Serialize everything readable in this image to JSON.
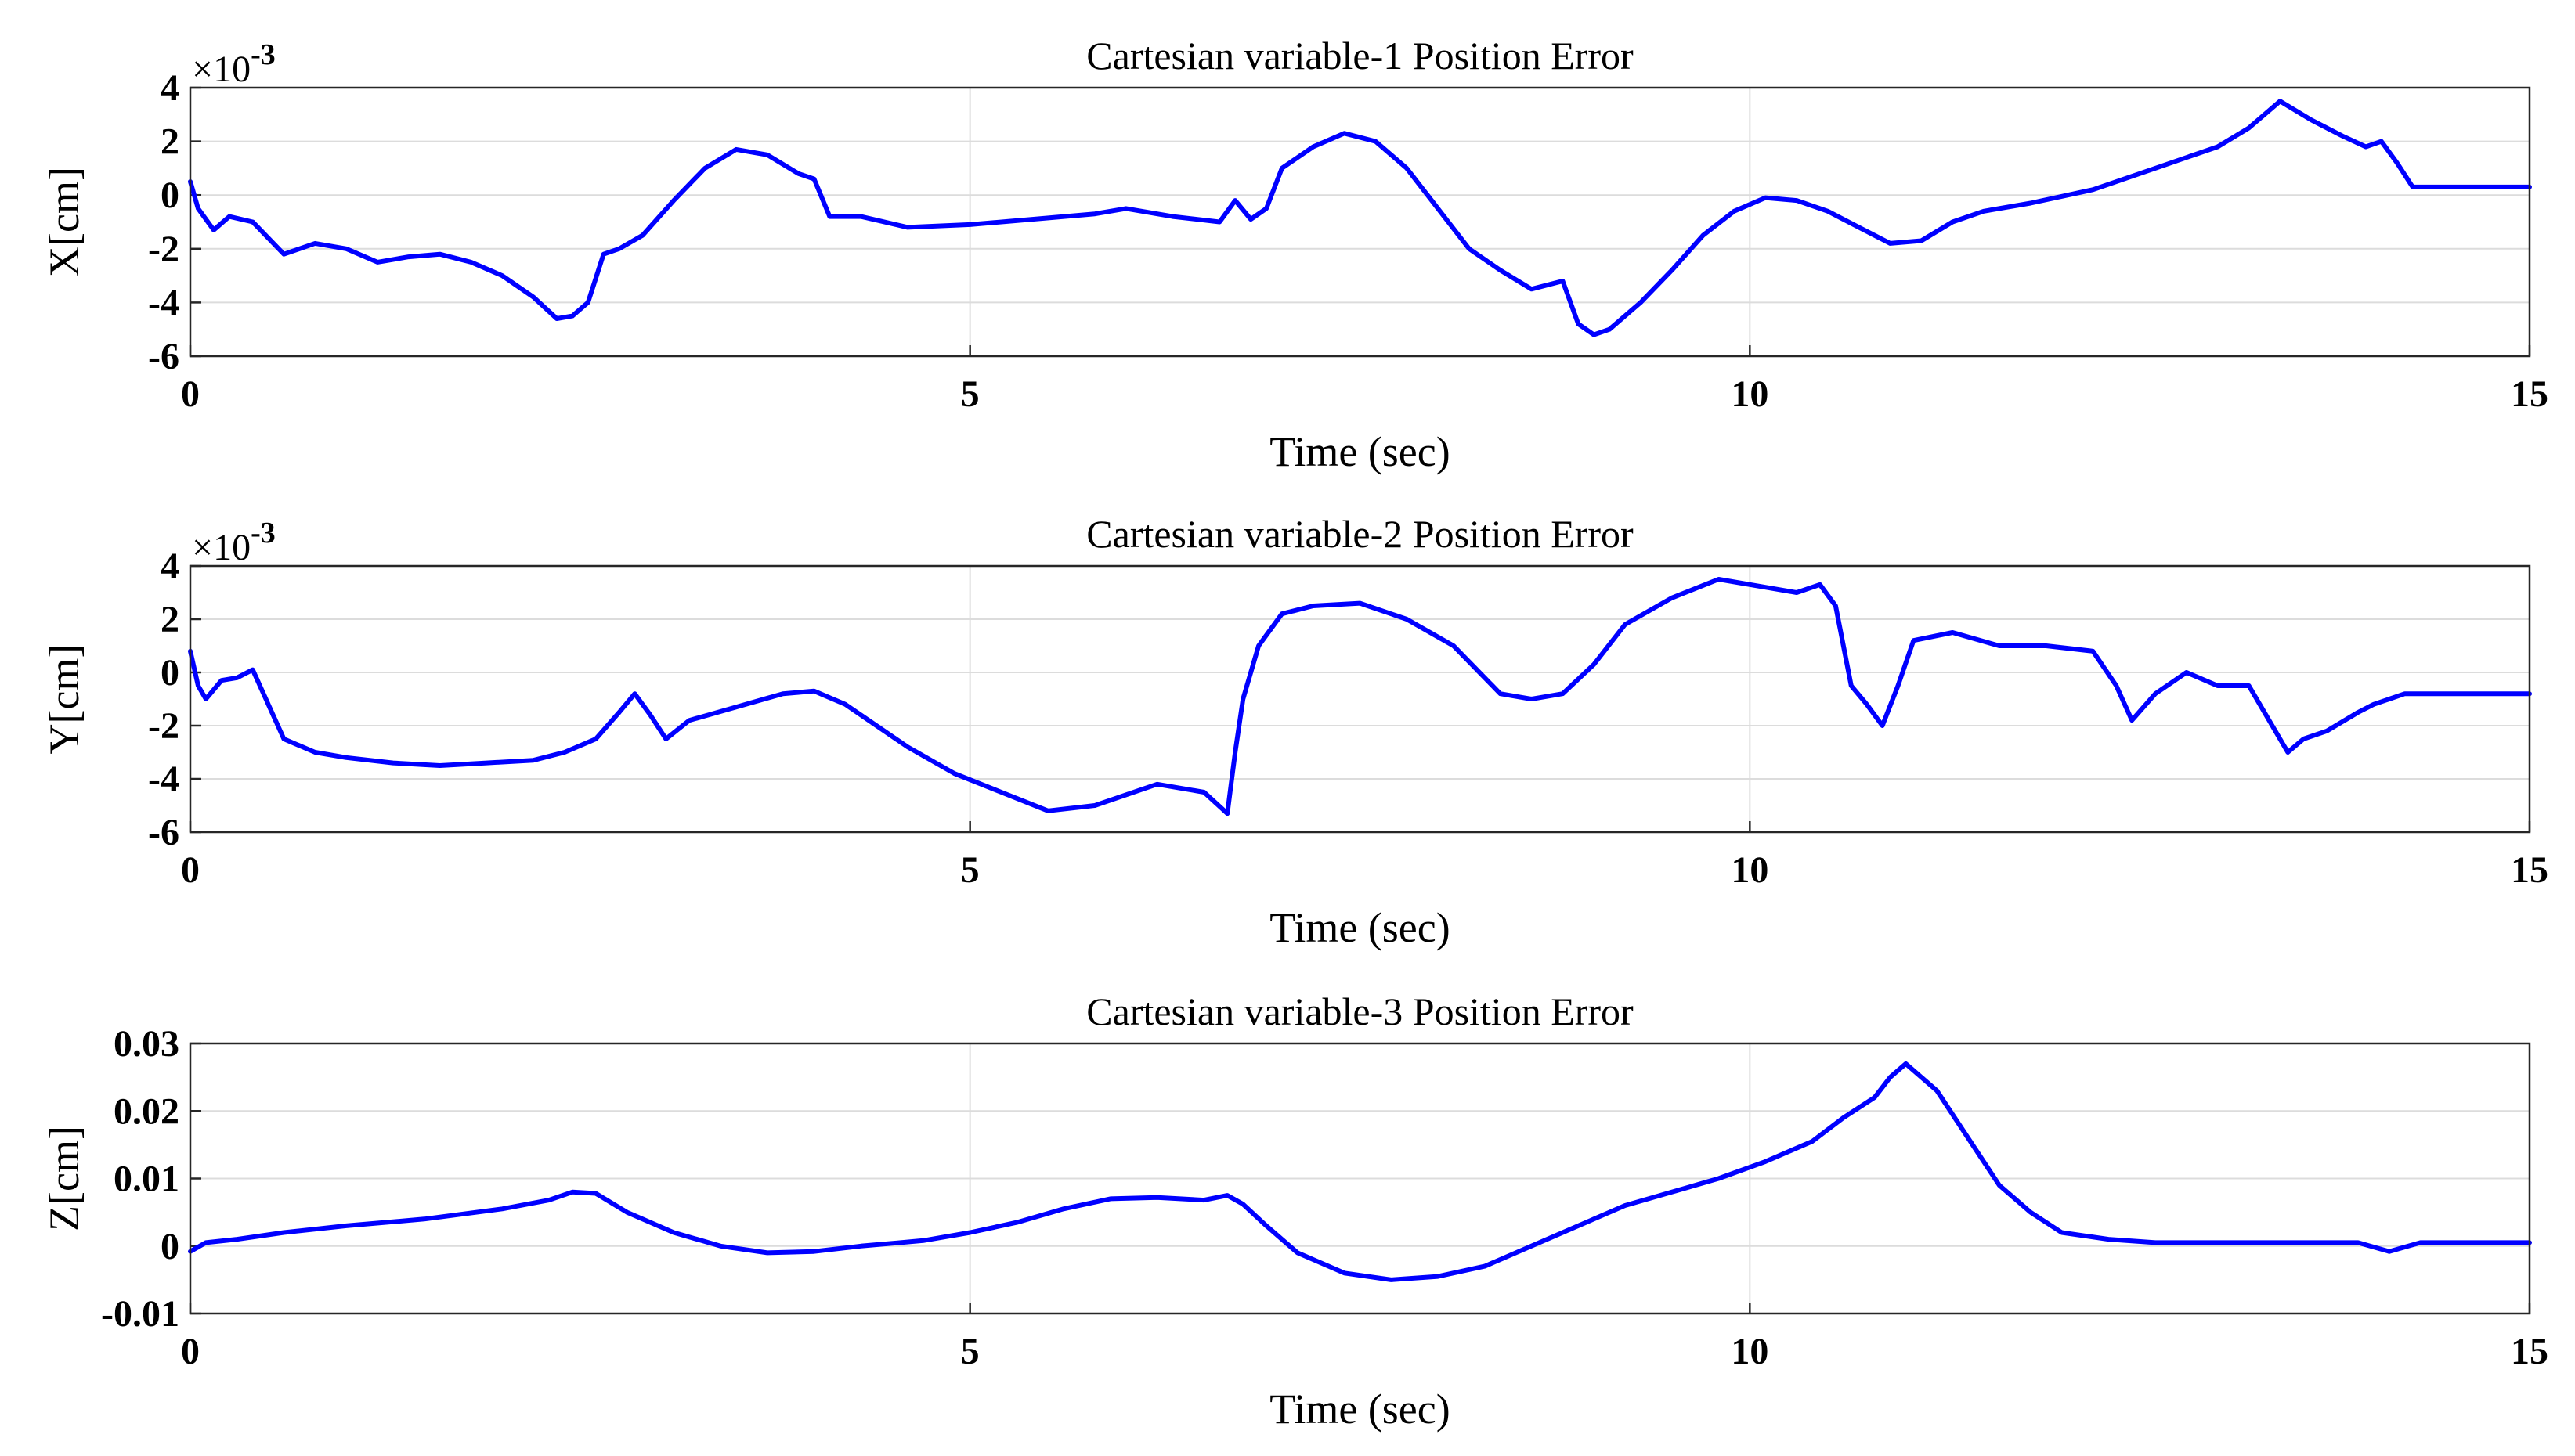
{
  "colors": {
    "line": "#0000ff",
    "grid": "#dcdcdc",
    "axis": "#262626"
  },
  "chart_data": [
    {
      "type": "line",
      "title": "Cartesian variable-1 Position Error",
      "xlabel": "Time (sec)",
      "ylabel": "X[cm]",
      "exponent": "×10",
      "exponent_power": "-3",
      "xlim": [
        0,
        15
      ],
      "ylim": [
        -6,
        4
      ],
      "grid": "on",
      "xticks": [
        0,
        5,
        10,
        15
      ],
      "xtick_labels": [
        "0",
        "5",
        "10",
        "15"
      ],
      "yticks": [
        -6,
        -4,
        -2,
        0,
        2,
        4
      ],
      "ytick_labels": [
        "-6",
        "-4",
        "-2",
        "0",
        "2",
        "4"
      ],
      "series": [
        {
          "color": "#0000ff",
          "x": [
            0,
            0.05,
            0.15,
            0.25,
            0.4,
            0.6,
            0.8,
            1.0,
            1.2,
            1.4,
            1.6,
            1.8,
            2.0,
            2.2,
            2.35,
            2.45,
            2.55,
            2.65,
            2.75,
            2.9,
            3.1,
            3.3,
            3.5,
            3.7,
            3.9,
            4.0,
            4.1,
            4.3,
            4.6,
            5.0,
            5.4,
            5.8,
            6.0,
            6.3,
            6.6,
            6.7,
            6.8,
            6.9,
            7.0,
            7.2,
            7.4,
            7.6,
            7.8,
            8.0,
            8.2,
            8.4,
            8.6,
            8.8,
            8.9,
            9.0,
            9.1,
            9.3,
            9.5,
            9.7,
            9.9,
            10.1,
            10.3,
            10.5,
            10.7,
            10.9,
            11.1,
            11.3,
            11.5,
            11.8,
            12.2,
            12.6,
            13.0,
            13.2,
            13.4,
            13.6,
            13.8,
            13.95,
            14.05,
            14.15,
            14.25,
            14.5,
            15.0
          ],
          "y": [
            0.5,
            -0.5,
            -1.3,
            -0.8,
            -1.0,
            -2.2,
            -1.8,
            -2.0,
            -2.5,
            -2.3,
            -2.2,
            -2.5,
            -3.0,
            -3.8,
            -4.6,
            -4.5,
            -4.0,
            -2.2,
            -2.0,
            -1.5,
            -0.2,
            1.0,
            1.7,
            1.5,
            0.8,
            0.6,
            -0.8,
            -0.8,
            -1.2,
            -1.1,
            -0.9,
            -0.7,
            -0.5,
            -0.8,
            -1.0,
            -0.2,
            -0.9,
            -0.5,
            1.0,
            1.8,
            2.3,
            2.0,
            1.0,
            -0.5,
            -2.0,
            -2.8,
            -3.5,
            -3.2,
            -4.8,
            -5.2,
            -5.0,
            -4.0,
            -2.8,
            -1.5,
            -0.6,
            -0.1,
            -0.2,
            -0.6,
            -1.2,
            -1.8,
            -1.7,
            -1.0,
            -0.6,
            -0.3,
            0.2,
            1.0,
            1.8,
            2.5,
            3.5,
            2.8,
            2.2,
            1.8,
            2.0,
            1.2,
            0.3,
            0.3,
            0.3
          ]
        }
      ]
    },
    {
      "type": "line",
      "title": "Cartesian variable-2 Position Error",
      "xlabel": "Time (sec)",
      "ylabel": "Y[cm]",
      "exponent": "×10",
      "exponent_power": "-3",
      "xlim": [
        0,
        15
      ],
      "ylim": [
        -6,
        4
      ],
      "grid": "on",
      "xticks": [
        0,
        5,
        10,
        15
      ],
      "xtick_labels": [
        "0",
        "5",
        "10",
        "15"
      ],
      "yticks": [
        -6,
        -4,
        -2,
        0,
        2,
        4
      ],
      "ytick_labels": [
        "-6",
        "-4",
        "-2",
        "0",
        "2",
        "4"
      ],
      "series": [
        {
          "color": "#0000ff",
          "x": [
            0,
            0.05,
            0.1,
            0.2,
            0.3,
            0.4,
            0.5,
            0.6,
            0.8,
            1.0,
            1.3,
            1.6,
            1.9,
            2.2,
            2.4,
            2.6,
            2.75,
            2.85,
            2.95,
            3.05,
            3.2,
            3.5,
            3.8,
            4.0,
            4.2,
            4.4,
            4.6,
            4.9,
            5.2,
            5.5,
            5.8,
            6.0,
            6.2,
            6.5,
            6.65,
            6.7,
            6.75,
            6.85,
            7.0,
            7.2,
            7.5,
            7.8,
            8.1,
            8.4,
            8.6,
            8.8,
            9.0,
            9.2,
            9.5,
            9.8,
            10.1,
            10.3,
            10.45,
            10.55,
            10.65,
            10.75,
            10.85,
            10.95,
            11.05,
            11.3,
            11.6,
            11.9,
            12.2,
            12.35,
            12.45,
            12.6,
            12.8,
            13.0,
            13.2,
            13.35,
            13.45,
            13.55,
            13.7,
            13.9,
            14.0,
            14.1,
            14.2,
            15.0
          ],
          "y": [
            0.8,
            -0.5,
            -1.0,
            -0.3,
            -0.2,
            0.1,
            -1.2,
            -2.5,
            -3.0,
            -3.2,
            -3.4,
            -3.5,
            -3.4,
            -3.3,
            -3.0,
            -2.5,
            -1.5,
            -0.8,
            -1.6,
            -2.5,
            -1.8,
            -1.3,
            -0.8,
            -0.7,
            -1.2,
            -2.0,
            -2.8,
            -3.8,
            -4.5,
            -5.2,
            -5.0,
            -4.6,
            -4.2,
            -4.5,
            -5.3,
            -3.0,
            -1.0,
            1.0,
            2.2,
            2.5,
            2.6,
            2.0,
            1.0,
            -0.8,
            -1.0,
            -0.8,
            0.3,
            1.8,
            2.8,
            3.5,
            3.2,
            3.0,
            3.3,
            2.5,
            -0.5,
            -1.2,
            -2.0,
            -0.5,
            1.2,
            1.5,
            1.0,
            1.0,
            0.8,
            -0.5,
            -1.8,
            -0.8,
            0.0,
            -0.5,
            -0.5,
            -2.0,
            -3.0,
            -2.5,
            -2.2,
            -1.5,
            -1.2,
            -1.0,
            -0.8,
            -0.8
          ]
        }
      ]
    },
    {
      "type": "line",
      "title": "Cartesian variable-3 Position Error",
      "xlabel": "Time (sec)",
      "ylabel": "Z[cm]",
      "xlim": [
        0,
        15
      ],
      "ylim": [
        -0.01,
        0.03
      ],
      "grid": "on",
      "xticks": [
        0,
        5,
        10,
        15
      ],
      "xtick_labels": [
        "0",
        "5",
        "10",
        "15"
      ],
      "yticks": [
        -0.01,
        0,
        0.01,
        0.02,
        0.03
      ],
      "ytick_labels": [
        "-0.01",
        "0",
        "0.01",
        "0.02",
        "0.03"
      ],
      "series": [
        {
          "color": "#0000ff",
          "x": [
            0,
            0.1,
            0.3,
            0.6,
            1.0,
            1.5,
            2.0,
            2.3,
            2.45,
            2.6,
            2.8,
            3.1,
            3.4,
            3.7,
            4.0,
            4.3,
            4.7,
            5.0,
            5.3,
            5.6,
            5.9,
            6.2,
            6.5,
            6.65,
            6.75,
            6.9,
            7.1,
            7.4,
            7.7,
            8.0,
            8.3,
            8.6,
            8.9,
            9.2,
            9.5,
            9.8,
            10.1,
            10.4,
            10.6,
            10.8,
            10.9,
            11.0,
            11.2,
            11.4,
            11.6,
            11.8,
            12.0,
            12.3,
            12.6,
            13.0,
            13.5,
            13.9,
            14.1,
            14.3,
            15.0
          ],
          "y": [
            -0.0008,
            0.0005,
            0.001,
            0.002,
            0.003,
            0.004,
            0.0055,
            0.0068,
            0.008,
            0.0078,
            0.005,
            0.002,
            0.0,
            -0.001,
            -0.0008,
            0.0,
            0.0008,
            0.002,
            0.0035,
            0.0055,
            0.007,
            0.0072,
            0.0068,
            0.0075,
            0.0062,
            0.003,
            -0.001,
            -0.004,
            -0.005,
            -0.0045,
            -0.003,
            0.0,
            0.003,
            0.006,
            0.008,
            0.01,
            0.0125,
            0.0155,
            0.019,
            0.022,
            0.025,
            0.027,
            0.023,
            0.016,
            0.009,
            0.005,
            0.002,
            0.001,
            0.0005,
            0.0005,
            0.0005,
            0.0005,
            -0.0008,
            0.0005,
            0.0005
          ]
        }
      ]
    }
  ]
}
